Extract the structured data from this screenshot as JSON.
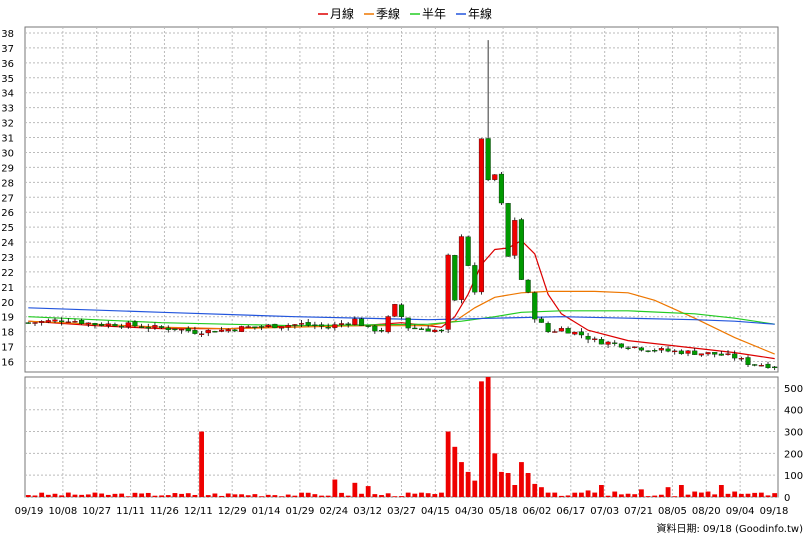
{
  "legend": [
    {
      "label": "月線",
      "color": "#dd0000"
    },
    {
      "label": "季線",
      "color": "#ee7700"
    },
    {
      "label": "半年",
      "color": "#22cc22"
    },
    {
      "label": "年線",
      "color": "#2255dd"
    }
  ],
  "footer": "資料日期: 09/18  (Goodinfo.tw)",
  "chart_data": {
    "type": "candlestick+volume",
    "x_ticks": [
      "09/19",
      "10/08",
      "10/27",
      "11/11",
      "11/26",
      "12/11",
      "12/29",
      "01/14",
      "01/29",
      "02/24",
      "03/12",
      "03/27",
      "04/15",
      "04/30",
      "05/18",
      "06/02",
      "06/17",
      "07/03",
      "07/21",
      "08/05",
      "08/20",
      "09/04",
      "09/18"
    ],
    "price_axis": {
      "ylim": [
        15.3,
        38.4
      ],
      "ticks": [
        16,
        17,
        18,
        19,
        20,
        21,
        22,
        23,
        24,
        25,
        26,
        27,
        28,
        29,
        30,
        31,
        32,
        33,
        34,
        35,
        36,
        37,
        38
      ]
    },
    "volume_axis": {
      "ylim": [
        0,
        550
      ],
      "ticks": [
        0,
        100,
        200,
        300,
        400,
        500
      ]
    },
    "candle_colors": {
      "up": "#ee0000",
      "down": "#009900",
      "wick": "#000000"
    },
    "close_path": [
      [
        0,
        18.6
      ],
      [
        6,
        18.8
      ],
      [
        10,
        18.5
      ],
      [
        14,
        18.5
      ],
      [
        18,
        18.3
      ],
      [
        22,
        18.2
      ],
      [
        25,
        18.0
      ],
      [
        29,
        18.1
      ],
      [
        33,
        18.3
      ],
      [
        37,
        18.4
      ],
      [
        41,
        18.5
      ],
      [
        45,
        18.3
      ],
      [
        49,
        18.8
      ],
      [
        51,
        18.2
      ],
      [
        53,
        18.1
      ],
      [
        55,
        19.7
      ],
      [
        57,
        18.3
      ],
      [
        59,
        18.2
      ],
      [
        61,
        18.1
      ],
      [
        62,
        18.0
      ],
      [
        63,
        23.0
      ],
      [
        64,
        20.0
      ],
      [
        65,
        24.5
      ],
      [
        66,
        22.5
      ],
      [
        67,
        20.5
      ],
      [
        68,
        31.0
      ],
      [
        69,
        28.0
      ],
      [
        70,
        28.5
      ],
      [
        71,
        26.5
      ],
      [
        72,
        23.0
      ],
      [
        73,
        25.5
      ],
      [
        74,
        21.5
      ],
      [
        75,
        20.5
      ],
      [
        76,
        19.0
      ],
      [
        78,
        18.0
      ],
      [
        80,
        18.2
      ],
      [
        83,
        17.8
      ],
      [
        85,
        17.4
      ],
      [
        88,
        17.2
      ],
      [
        92,
        16.9
      ],
      [
        96,
        16.7
      ],
      [
        100,
        16.6
      ],
      [
        103,
        16.5
      ],
      [
        106,
        16.3
      ],
      [
        108,
        15.9
      ],
      [
        112,
        15.7
      ]
    ],
    "ma_series": [
      {
        "name": "月線",
        "points": [
          [
            0,
            18.7
          ],
          [
            10,
            18.4
          ],
          [
            20,
            18.2
          ],
          [
            30,
            18.2
          ],
          [
            40,
            18.4
          ],
          [
            50,
            18.4
          ],
          [
            56,
            18.6
          ],
          [
            62,
            18.3
          ],
          [
            64,
            19.0
          ],
          [
            66,
            20.5
          ],
          [
            68,
            22.5
          ],
          [
            70,
            23.5
          ],
          [
            72,
            23.6
          ],
          [
            74,
            24.1
          ],
          [
            76,
            23.2
          ],
          [
            78,
            20.5
          ],
          [
            80,
            19.2
          ],
          [
            84,
            18.1
          ],
          [
            90,
            17.4
          ],
          [
            100,
            16.9
          ],
          [
            106,
            16.6
          ],
          [
            112,
            16.2
          ]
        ]
      },
      {
        "name": "季線",
        "points": [
          [
            0,
            18.7
          ],
          [
            10,
            18.5
          ],
          [
            20,
            18.3
          ],
          [
            30,
            18.2
          ],
          [
            40,
            18.3
          ],
          [
            50,
            18.4
          ],
          [
            60,
            18.4
          ],
          [
            64,
            18.7
          ],
          [
            67,
            19.6
          ],
          [
            70,
            20.3
          ],
          [
            74,
            20.6
          ],
          [
            78,
            20.7
          ],
          [
            85,
            20.7
          ],
          [
            90,
            20.6
          ],
          [
            94,
            20.1
          ],
          [
            100,
            18.9
          ],
          [
            106,
            17.6
          ],
          [
            112,
            16.5
          ]
        ]
      },
      {
        "name": "半年",
        "points": [
          [
            0,
            19.0
          ],
          [
            20,
            18.6
          ],
          [
            40,
            18.4
          ],
          [
            60,
            18.5
          ],
          [
            65,
            18.7
          ],
          [
            70,
            19.0
          ],
          [
            74,
            19.3
          ],
          [
            80,
            19.4
          ],
          [
            90,
            19.4
          ],
          [
            100,
            19.2
          ],
          [
            106,
            18.9
          ],
          [
            112,
            18.5
          ]
        ]
      },
      {
        "name": "年線",
        "points": [
          [
            0,
            19.6
          ],
          [
            20,
            19.3
          ],
          [
            40,
            19.0
          ],
          [
            60,
            18.8
          ],
          [
            70,
            18.9
          ],
          [
            80,
            19.0
          ],
          [
            90,
            18.9
          ],
          [
            100,
            18.8
          ],
          [
            106,
            18.7
          ],
          [
            112,
            18.5
          ]
        ]
      }
    ],
    "volume_spikes": [
      [
        26,
        300
      ],
      [
        46,
        80
      ],
      [
        49,
        65
      ],
      [
        51,
        50
      ],
      [
        59,
        20
      ],
      [
        63,
        300
      ],
      [
        64,
        230
      ],
      [
        65,
        160
      ],
      [
        66,
        115
      ],
      [
        67,
        75
      ],
      [
        68,
        530
      ],
      [
        69,
        550
      ],
      [
        70,
        200
      ],
      [
        71,
        115
      ],
      [
        72,
        110
      ],
      [
        73,
        55
      ],
      [
        74,
        160
      ],
      [
        75,
        110
      ],
      [
        76,
        60
      ],
      [
        77,
        45
      ],
      [
        78,
        20
      ],
      [
        84,
        30
      ],
      [
        86,
        55
      ],
      [
        88,
        25
      ],
      [
        90,
        15
      ],
      [
        92,
        35
      ],
      [
        96,
        45
      ],
      [
        98,
        55
      ],
      [
        100,
        25
      ],
      [
        102,
        25
      ],
      [
        104,
        55
      ],
      [
        106,
        25
      ],
      [
        108,
        15
      ],
      [
        110,
        20
      ]
    ]
  }
}
